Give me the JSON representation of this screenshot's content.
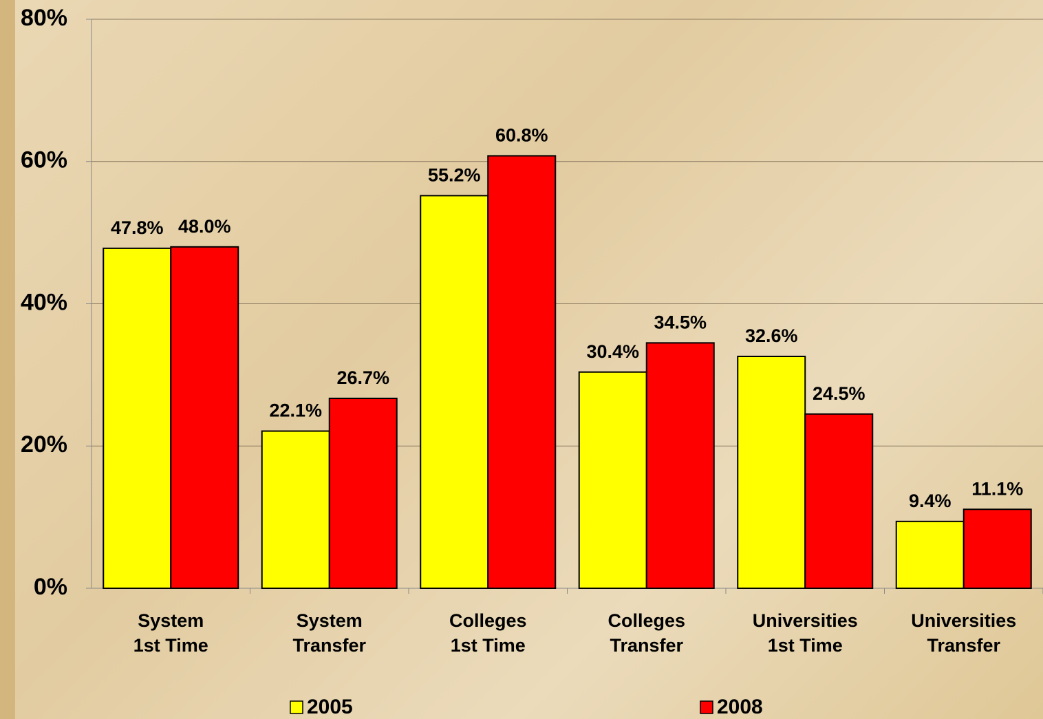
{
  "chart_data": {
    "type": "bar",
    "categories": [
      "System\n1st Time",
      "System\nTransfer",
      "Colleges\n1st Time",
      "Colleges\nTransfer",
      "Universities\n1st Time",
      "Universities\nTransfer"
    ],
    "series": [
      {
        "name": "2005",
        "color": "#ffff00",
        "values": [
          47.8,
          22.1,
          55.2,
          30.4,
          32.6,
          9.4
        ],
        "value_labels": [
          "47.8%",
          "22.1%",
          "55.2%",
          "30.4%",
          "32.6%",
          "9.4%"
        ]
      },
      {
        "name": "2008",
        "color": "#ff0000",
        "values": [
          48.0,
          26.7,
          60.8,
          34.5,
          24.5,
          11.1
        ],
        "value_labels": [
          "48.0%",
          "26.7%",
          "60.8%",
          "34.5%",
          "24.5%",
          "11.1%"
        ]
      }
    ],
    "ylim": [
      0,
      80
    ],
    "yticks": [
      {
        "value": 0,
        "label": "0%"
      },
      {
        "value": 20,
        "label": "20%"
      },
      {
        "value": 40,
        "label": "40%"
      },
      {
        "value": 60,
        "label": "60%"
      },
      {
        "value": 80,
        "label": "80%"
      }
    ],
    "grid": true,
    "legend": "bottom"
  }
}
